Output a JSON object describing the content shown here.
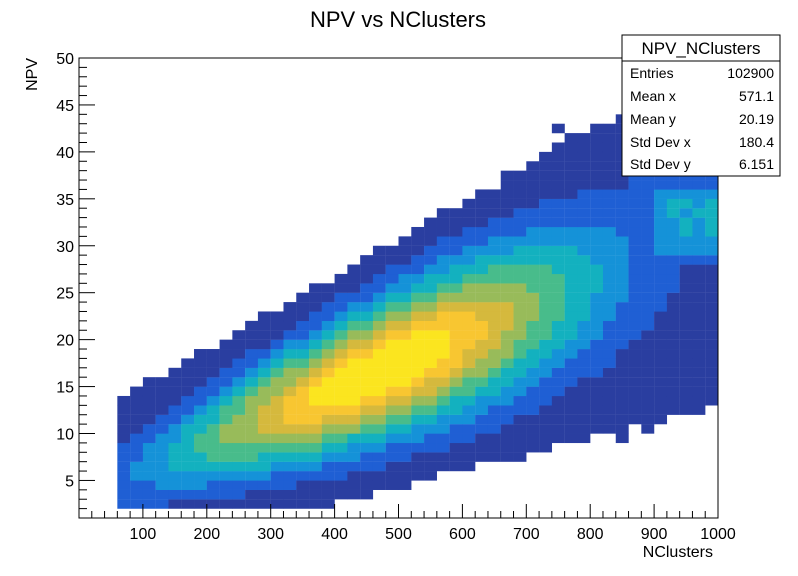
{
  "chart_data": {
    "type": "heatmap",
    "title": "NPV vs NClusters",
    "xlabel": "NClusters",
    "ylabel": "NPV",
    "xlim": [
      0,
      1000
    ],
    "ylim": [
      1,
      50
    ],
    "x_ticks": [
      100,
      200,
      300,
      400,
      500,
      600,
      700,
      800,
      900,
      1000
    ],
    "y_ticks": [
      5,
      10,
      15,
      20,
      25,
      30,
      35,
      40,
      45,
      50
    ],
    "x_bins": 50,
    "y_bins": 49,
    "palette": [
      "#2a3ea0",
      "#1f5fd4",
      "#1592d8",
      "#13b1bf",
      "#48bc8b",
      "#98bb5a",
      "#d5b93d",
      "#f8c631",
      "#fbe51f"
    ],
    "stats_box": {
      "title": "NPV_NClusters",
      "rows": [
        {
          "label": "Entries",
          "value": "102900"
        },
        {
          "label": "Mean x",
          "value": "571.1"
        },
        {
          "label": "Mean y",
          "value": "20.19"
        },
        {
          "label": "Std Dev x",
          "value": "180.4"
        },
        {
          "label": "Std Dev y",
          "value": "6.151"
        }
      ]
    },
    "distribution": {
      "mean_x": 571.1,
      "mean_y": 20.19,
      "std_x": 180.4,
      "std_y": 6.151
    }
  }
}
